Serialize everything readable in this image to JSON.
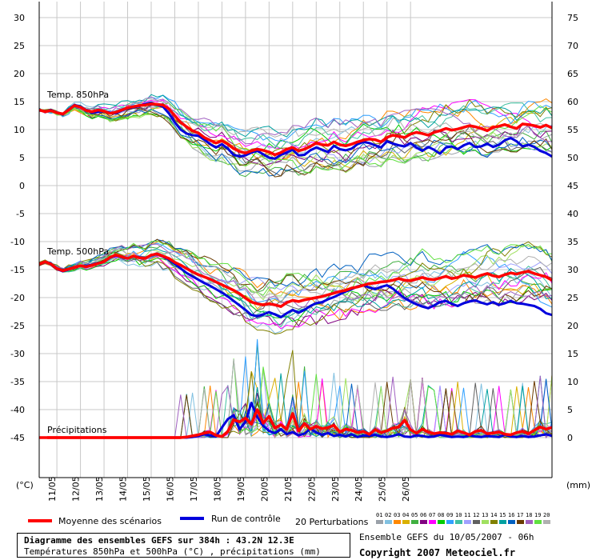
{
  "chart_data": {
    "type": "line",
    "left_axis": {
      "unit_label": "(°C)",
      "ticks": [
        30,
        25,
        20,
        15,
        10,
        5,
        0,
        -5,
        -10,
        -15,
        -20,
        -25,
        -30,
        -35,
        -40,
        -45
      ],
      "range": [
        -50,
        30
      ]
    },
    "right_axis": {
      "unit_label": "(mm)",
      "ticks": [
        75,
        70,
        65,
        60,
        55,
        50,
        45,
        40,
        35,
        30,
        25,
        20,
        15,
        10,
        5,
        0
      ]
    },
    "x_step_hours": 6,
    "x_ticks": [
      "11/05",
      "12/05",
      "13/05",
      "14/05",
      "15/05",
      "16/05",
      "17/05",
      "18/05",
      "19/05",
      "20/05",
      "21/05",
      "22/05",
      "23/05",
      "24/05",
      "25/05",
      "26/05"
    ],
    "panel_labels": {
      "t850": "Temp. 850hPa",
      "t500": "Temp. 500hPa",
      "precip": "Précipitations"
    },
    "series": [
      {
        "name": "Moyenne des scénarios",
        "color": "#ff0000",
        "width": 3.5,
        "t850": [
          13.5,
          13.2,
          13.4,
          13.0,
          12.8,
          13.5,
          14.3,
          14.0,
          13.4,
          13.2,
          13.5,
          13.3,
          12.9,
          13.1,
          13.5,
          13.9,
          14.1,
          14.3,
          14.4,
          14.6,
          14.5,
          14.4,
          13.7,
          12.5,
          11.3,
          10.5,
          9.8,
          9.4,
          8.6,
          8.1,
          7.6,
          8.0,
          7.4,
          6.6,
          6.1,
          5.8,
          6.2,
          6.5,
          6.3,
          6.0,
          5.5,
          5.9,
          6.5,
          6.8,
          6.2,
          6.5,
          7.0,
          7.6,
          7.3,
          7.2,
          7.8,
          7.3,
          7.1,
          7.4,
          7.8,
          8.1,
          8.3,
          8.2,
          7.8,
          8.6,
          9.0,
          8.8,
          8.6,
          9.2,
          9.5,
          9.3,
          9.0,
          9.5,
          9.8,
          10.2,
          9.9,
          10.1,
          10.4,
          10.7,
          10.5,
          10.2,
          9.8,
          10.4,
          10.6,
          10.9,
          10.5,
          10.2,
          11.0,
          10.9,
          10.7,
          10.4,
          10.8,
          10.3
        ],
        "t500": [
          -14.0,
          -13.6,
          -14.0,
          -14.8,
          -15.2,
          -14.9,
          -14.6,
          -14.3,
          -14.5,
          -14.2,
          -13.9,
          -13.6,
          -12.8,
          -12.4,
          -12.7,
          -13.0,
          -12.6,
          -12.9,
          -13.0,
          -12.4,
          -12.2,
          -12.6,
          -13.0,
          -13.7,
          -14.2,
          -14.8,
          -15.4,
          -15.9,
          -16.3,
          -16.7,
          -17.2,
          -17.7,
          -18.2,
          -18.7,
          -19.3,
          -20.1,
          -20.8,
          -21.1,
          -21.3,
          -21.1,
          -21.3,
          -21.6,
          -20.9,
          -20.5,
          -20.7,
          -20.4,
          -20.2,
          -20.0,
          -19.8,
          -19.5,
          -19.2,
          -18.9,
          -18.7,
          -18.3,
          -18.1,
          -17.8,
          -17.5,
          -17.4,
          -17.2,
          -17.1,
          -16.9,
          -16.6,
          -16.9,
          -17.0,
          -16.7,
          -16.4,
          -16.7,
          -16.8,
          -16.5,
          -16.2,
          -16.6,
          -16.4,
          -16.0,
          -16.2,
          -16.4,
          -16.0,
          -15.7,
          -16.1,
          -16.3,
          -15.9,
          -15.6,
          -15.8,
          -15.5,
          -15.3,
          -15.7,
          -16.0,
          -16.3,
          -16.9
        ],
        "precip": [
          0,
          0,
          0,
          0,
          0,
          0,
          0,
          0,
          0,
          0,
          0,
          0,
          0,
          0,
          0,
          0,
          0,
          0,
          0,
          0,
          0,
          0,
          0,
          0,
          0,
          0.1,
          0.3,
          0.5,
          0.8,
          1.0,
          0.4,
          0.2,
          1.1,
          3.2,
          2.8,
          3.5,
          2.4,
          5.0,
          2.6,
          3.8,
          1.7,
          2.3,
          1.5,
          4.3,
          1.2,
          2.5,
          1.5,
          2.0,
          1.6,
          1.8,
          2.2,
          1.0,
          1.5,
          1.3,
          0.9,
          1.1,
          0.6,
          1.4,
          0.9,
          1.2,
          1.7,
          1.9,
          3.1,
          1.4,
          0.8,
          1.5,
          1.0,
          0.7,
          0.9,
          0.8,
          0.6,
          1.2,
          0.9,
          0.5,
          1.1,
          1.3,
          0.7,
          0.8,
          1.0,
          0.6,
          0.5,
          0.9,
          1.1,
          0.7,
          1.3,
          1.9,
          1.5,
          1.8
        ]
      },
      {
        "name": "Run de contrôle",
        "color": "#0000dd",
        "width": 3,
        "t850": [
          13.5,
          13.2,
          13.5,
          13.0,
          12.7,
          13.6,
          14.4,
          14.1,
          13.5,
          13.0,
          13.2,
          13.3,
          13.0,
          12.9,
          13.4,
          13.8,
          14.0,
          14.2,
          14.6,
          14.8,
          14.4,
          14.1,
          12.9,
          11.3,
          10.0,
          9.3,
          9.0,
          8.9,
          8.2,
          7.4,
          6.8,
          7.4,
          6.6,
          5.5,
          5.2,
          5.4,
          5.9,
          6.2,
          5.6,
          5.0,
          4.8,
          5.5,
          5.9,
          6.4,
          5.4,
          5.5,
          6.3,
          6.8,
          6.4,
          6.0,
          7.1,
          6.5,
          6.3,
          6.6,
          7.4,
          7.8,
          7.6,
          7.2,
          6.8,
          7.9,
          7.5,
          7.2,
          7.0,
          7.6,
          6.8,
          6.2,
          6.9,
          6.4,
          5.7,
          6.8,
          7.0,
          6.5,
          7.2,
          7.6,
          6.9,
          7.0,
          7.5,
          6.9,
          7.3,
          8.1,
          8.5,
          7.9,
          7.0,
          7.3,
          6.9,
          6.2,
          5.8,
          5.2
        ],
        "t500": [
          -14.0,
          -13.6,
          -14.1,
          -14.9,
          -15.3,
          -15.0,
          -14.6,
          -14.3,
          -14.4,
          -14.1,
          -13.8,
          -13.6,
          -12.9,
          -12.5,
          -12.8,
          -13.0,
          -12.6,
          -12.8,
          -12.9,
          -12.5,
          -12.2,
          -12.7,
          -13.2,
          -14.0,
          -14.8,
          -15.6,
          -16.2,
          -16.8,
          -17.4,
          -17.9,
          -18.5,
          -19.1,
          -19.8,
          -20.6,
          -21.4,
          -22.2,
          -23.1,
          -23.3,
          -23.0,
          -22.6,
          -23.0,
          -23.5,
          -22.8,
          -22.2,
          -22.7,
          -22.2,
          -21.5,
          -21.0,
          -20.8,
          -20.3,
          -19.9,
          -19.4,
          -18.9,
          -18.5,
          -18.0,
          -17.8,
          -18.2,
          -18.5,
          -18.1,
          -17.8,
          -18.4,
          -19.3,
          -20.1,
          -20.7,
          -21.2,
          -21.6,
          -21.9,
          -21.4,
          -20.8,
          -20.6,
          -21.1,
          -21.5,
          -21.0,
          -20.7,
          -20.5,
          -20.9,
          -21.2,
          -20.8,
          -21.3,
          -21.0,
          -20.6,
          -21.0,
          -21.1,
          -21.3,
          -21.5,
          -22.0,
          -22.8,
          -23.1
        ],
        "precip": [
          0,
          0,
          0,
          0,
          0,
          0,
          0,
          0,
          0,
          0,
          0,
          0,
          0,
          0,
          0,
          0,
          0,
          0,
          0,
          0,
          0,
          0,
          0,
          0,
          0,
          0,
          0.1,
          0.3,
          0.6,
          0.4,
          0.2,
          1.8,
          3.3,
          4.0,
          1.5,
          2.8,
          6.2,
          3.7,
          2.1,
          1.2,
          0.8,
          1.5,
          0.6,
          1.0,
          0.4,
          0.7,
          1.6,
          0.9,
          0.5,
          0.8,
          0.3,
          0.5,
          0.2,
          0.6,
          0.1,
          0.4,
          0.3,
          0.5,
          0.2,
          0.1,
          0.3,
          0.6,
          0.2,
          0.1,
          0.4,
          0.3,
          0.1,
          0.2,
          0.5,
          0.3,
          0.1,
          0.2,
          0.1,
          0.4,
          0.2,
          0.1,
          0.3,
          0.2,
          0.1,
          0.5,
          0.2,
          0.1,
          0.3,
          0.1,
          0.2,
          0.4,
          0.6,
          0.3
        ]
      }
    ],
    "perturbations": {
      "label": "20 Perturbations",
      "ids": [
        "01",
        "02",
        "03",
        "04",
        "05",
        "06",
        "07",
        "08",
        "09",
        "10",
        "11",
        "12",
        "13",
        "14",
        "15",
        "16",
        "17",
        "18",
        "19",
        "20"
      ],
      "colors": [
        "#9aa0a8",
        "#80c0e0",
        "#ff8800",
        "#d9b000",
        "#40b040",
        "#800080",
        "#ff00ff",
        "#00cc00",
        "#30a0ff",
        "#40c0a0",
        "#a0a0ff",
        "#606060",
        "#a0e060",
        "#808000",
        "#00a0a0",
        "#0060c0",
        "#6a3a00",
        "#a060c0",
        "#60e040",
        "#b0b0b0"
      ]
    },
    "legend": {
      "mean": "Moyenne des scénarios",
      "control": "Run de contrôle"
    }
  },
  "footer": {
    "title": "Diagramme des ensembles GEFS sur 384h : 43.2N 12.3E",
    "subtitle": "Températures 850hPa et 500hPa (°C) , précipitations (mm)",
    "ensemble_info": "Ensemble GEFS du 10/05/2007 - 06h",
    "copyright": "Copyright 2007 Meteociel.fr"
  }
}
